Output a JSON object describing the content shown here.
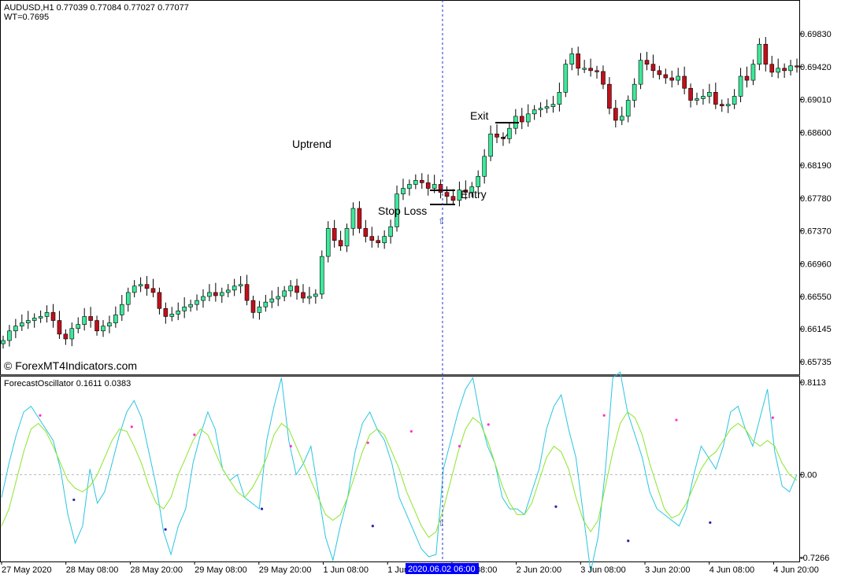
{
  "main_panel": {
    "symbol_line": "AUDUSD,H1  0.77039 0.77084 0.77027 0.77077",
    "wt_line": "WT=0.7695",
    "watermark": "© ForexMT4Indicators.com",
    "annotations": {
      "uptrend": "Uptrend",
      "exit": "Exit",
      "entry": "Entry",
      "stop_loss": "Stop Loss"
    },
    "colors": {
      "bull": "#3de89a",
      "bear": "#c0101a",
      "wick": "#000000"
    }
  },
  "indicator_panel": {
    "title": "ForecastOscillator 0.1611 0.0383",
    "colors": {
      "fast": "#29c5e0",
      "slow": "#8ae62a",
      "upper_dot": "#ff33cc",
      "lower_dot": "#2222aa"
    }
  },
  "crosshair": {
    "time_label": "2020.06.02 06:00",
    "color": "#0000ff"
  },
  "chart_data": [
    {
      "type": "candlestick",
      "ylim": [
        0.65735,
        0.6983
      ],
      "y_ticks": [
        "0.69830",
        "0.69420",
        "0.69010",
        "0.68600",
        "0.68190",
        "0.67780",
        "0.67370",
        "0.66960",
        "0.66550",
        "0.66145",
        "0.65735"
      ],
      "close": [
        0.66,
        0.6612,
        0.6618,
        0.6622,
        0.6625,
        0.6628,
        0.663,
        0.6635,
        0.6625,
        0.6608,
        0.6602,
        0.6615,
        0.662,
        0.663,
        0.6625,
        0.6612,
        0.6618,
        0.6622,
        0.6632,
        0.6645,
        0.666,
        0.6668,
        0.667,
        0.6665,
        0.666,
        0.664,
        0.663,
        0.6633,
        0.6637,
        0.6642,
        0.6645,
        0.665,
        0.6655,
        0.666,
        0.6656,
        0.666,
        0.6663,
        0.6668,
        0.667,
        0.665,
        0.6635,
        0.6642,
        0.6648,
        0.6652,
        0.6655,
        0.6662,
        0.6668,
        0.666,
        0.6653,
        0.6655,
        0.6658,
        0.6705,
        0.674,
        0.6725,
        0.6718,
        0.674,
        0.6765,
        0.674,
        0.673,
        0.6725,
        0.6722,
        0.673,
        0.6742,
        0.6783,
        0.679,
        0.6795,
        0.68,
        0.6797,
        0.679,
        0.6795,
        0.6785,
        0.678,
        0.6775,
        0.6788,
        0.6785,
        0.6792,
        0.6805,
        0.683,
        0.6858,
        0.6854,
        0.6852,
        0.6865,
        0.688,
        0.6873,
        0.6883,
        0.6888,
        0.689,
        0.6892,
        0.6895,
        0.691,
        0.6945,
        0.6958,
        0.694,
        0.694,
        0.6937,
        0.6936,
        0.692,
        0.689,
        0.6875,
        0.688,
        0.69,
        0.692,
        0.695,
        0.6945,
        0.6937,
        0.6932,
        0.6928,
        0.6925,
        0.693,
        0.6915,
        0.69,
        0.6902,
        0.6905,
        0.691,
        0.6895,
        0.6893,
        0.6895,
        0.6905,
        0.693,
        0.6925,
        0.6945,
        0.697,
        0.6945,
        0.6935,
        0.694,
        0.6937,
        0.6943,
        0.6942
      ],
      "crosshair_index": 68
    },
    {
      "type": "line",
      "ylim": [
        -0.7266,
        0.8113
      ],
      "y_ticks": [
        "0.8113",
        "0.00",
        "-0.7266"
      ],
      "series": [
        {
          "values": [
            -0.2,
            0.1,
            0.35,
            0.55,
            0.6,
            0.5,
            0.4,
            0.3,
            0.05,
            -0.35,
            -0.6,
            -0.45,
            0.05,
            -0.25,
            -0.15,
            0.1,
            0.35,
            0.55,
            0.65,
            0.5,
            0.2,
            -0.1,
            -0.5,
            -0.7,
            -0.45,
            -0.3,
            0.1,
            0.35,
            0.55,
            0.4,
            0.05,
            -0.05,
            0.0,
            -0.2,
            -0.25,
            -0.3,
            0.3,
            0.6,
            0.85,
            0.3,
            0.0,
            0.1,
            0.25,
            -0.15,
            -0.55,
            -0.75,
            -0.45,
            -0.2,
            0.2,
            0.45,
            0.55,
            0.4,
            0.3,
            0.1,
            -0.2,
            -0.35,
            -0.5,
            -0.65,
            -0.72,
            -0.7,
            0.05,
            0.3,
            0.55,
            0.75,
            0.85,
            0.5,
            0.25,
            0.1,
            -0.2,
            -0.3,
            -0.3,
            -0.35,
            -0.15,
            0.05,
            0.4,
            0.6,
            0.7,
            0.4,
            0.15,
            -0.35,
            -0.85,
            -0.55,
            0.05,
            0.85,
            0.9,
            0.55,
            0.35,
            0.15,
            -0.15,
            -0.3,
            -0.35,
            -0.4,
            -0.45,
            -0.3,
            0.0,
            0.25,
            0.15,
            0.05,
            0.25,
            0.55,
            0.6,
            0.4,
            0.25,
            0.5,
            0.75,
            0.2,
            -0.1,
            -0.15,
            0.0
          ]
        },
        {
          "values": [
            -0.45,
            -0.3,
            -0.05,
            0.2,
            0.4,
            0.45,
            0.38,
            0.25,
            0.1,
            -0.05,
            -0.12,
            -0.15,
            -0.1,
            0.0,
            0.15,
            0.3,
            0.4,
            0.38,
            0.25,
            0.1,
            -0.1,
            -0.25,
            -0.3,
            -0.2,
            0.0,
            0.15,
            0.3,
            0.4,
            0.35,
            0.2,
            0.05,
            -0.05,
            -0.15,
            -0.2,
            -0.12,
            0.0,
            0.15,
            0.35,
            0.45,
            0.4,
            0.25,
            0.1,
            -0.05,
            -0.2,
            -0.35,
            -0.4,
            -0.35,
            -0.2,
            0.0,
            0.2,
            0.35,
            0.4,
            0.35,
            0.2,
            0.05,
            -0.15,
            -0.3,
            -0.45,
            -0.55,
            -0.5,
            -0.3,
            -0.05,
            0.2,
            0.4,
            0.5,
            0.45,
            0.3,
            0.1,
            -0.1,
            -0.25,
            -0.35,
            -0.35,
            -0.25,
            -0.05,
            0.15,
            0.25,
            0.2,
            0.05,
            -0.2,
            -0.4,
            -0.5,
            -0.4,
            -0.1,
            0.2,
            0.45,
            0.55,
            0.5,
            0.35,
            0.1,
            -0.1,
            -0.3,
            -0.38,
            -0.35,
            -0.25,
            -0.1,
            0.05,
            0.15,
            0.2,
            0.3,
            0.4,
            0.45,
            0.4,
            0.3,
            0.25,
            0.3,
            0.25,
            0.1,
            0.0,
            -0.05
          ]
        }
      ],
      "upper_dots": [
        [
          8,
          0.52
        ],
        [
          27,
          0.42
        ],
        [
          40,
          0.35
        ],
        [
          60,
          0.25
        ],
        [
          76,
          0.28
        ],
        [
          85,
          0.38
        ],
        [
          95,
          0.25
        ],
        [
          101,
          0.44
        ],
        [
          125,
          0.52
        ],
        [
          140,
          0.48
        ],
        [
          160,
          0.5
        ]
      ],
      "lower_dots": [
        [
          15,
          -0.22
        ],
        [
          34,
          -0.48
        ],
        [
          54,
          -0.3
        ],
        [
          77,
          -0.45
        ],
        [
          115,
          -0.28
        ],
        [
          130,
          -0.58
        ],
        [
          147,
          -0.42
        ]
      ]
    }
  ],
  "x_axis_labels": [
    "27 May 2020",
    "28 May 08:00",
    "28 May 20:00",
    "29 May 08:00",
    "29 May 20:00",
    "1 Jun 08:00",
    "1 Jun 20:00",
    "2 Jun 08:00",
    "2 Jun 20:00",
    "3 Jun 08:00",
    "3 Jun 20:00",
    "4 Jun 08:00",
    "4 Jun 20:00"
  ]
}
